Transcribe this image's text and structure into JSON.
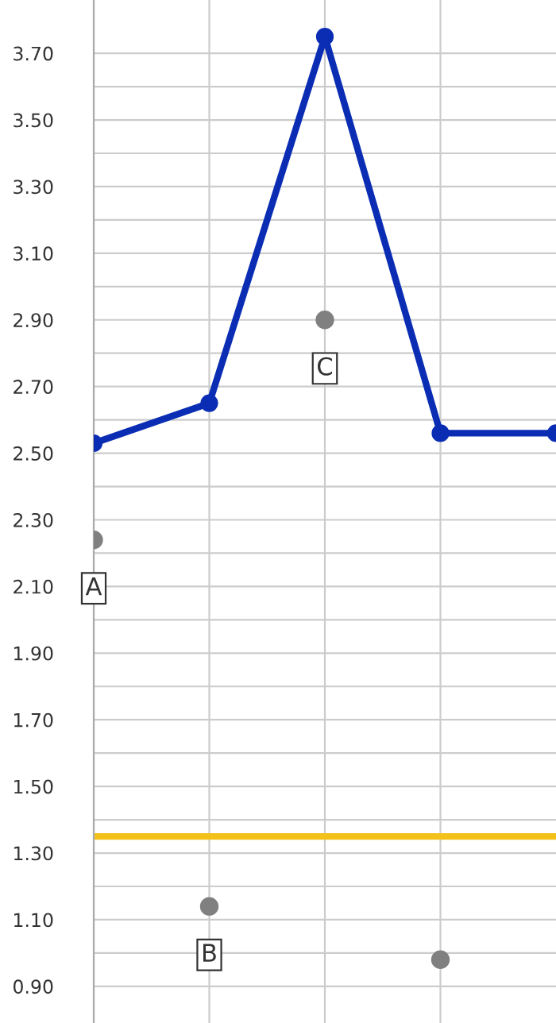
{
  "chart_data": {
    "type": "line",
    "categories": [
      null,
      null,
      null,
      null,
      null
    ],
    "marker": "circle",
    "series": [
      {
        "color": "#0a2db4",
        "values": [
          2.53,
          2.65,
          3.75,
          2.56,
          2.56
        ]
      },
      {
        "type": "scatter",
        "color": "#808080",
        "values": [
          2.24,
          1.14,
          2.9,
          0.98,
          null
        ]
      }
    ],
    "ylim": [
      0.79,
      3.86
    ],
    "yticks": [
      {
        "value": 0.9,
        "label": "0.90"
      },
      {
        "value": 1.0,
        "label": null
      },
      {
        "value": 1.1,
        "label": "1.10"
      },
      {
        "value": 1.2,
        "label": null
      },
      {
        "value": 1.3,
        "label": "1.30"
      },
      {
        "value": 1.4,
        "label": null
      },
      {
        "value": 1.5,
        "label": "1.50"
      },
      {
        "value": 1.6,
        "label": null
      },
      {
        "value": 1.7,
        "label": "1.70"
      },
      {
        "value": 1.8,
        "label": null
      },
      {
        "value": 1.9,
        "label": "1.90"
      },
      {
        "value": 2.0,
        "label": null
      },
      {
        "value": 2.1,
        "label": "2.10"
      },
      {
        "value": 2.2,
        "label": null
      },
      {
        "value": 2.3,
        "label": "2.30"
      },
      {
        "value": 2.4,
        "label": null
      },
      {
        "value": 2.5,
        "label": "2.50"
      },
      {
        "value": 2.6,
        "label": null
      },
      {
        "value": 2.7,
        "label": "2.70"
      },
      {
        "value": 2.8,
        "label": null
      },
      {
        "value": 2.9,
        "label": "2.90"
      },
      {
        "value": 3.0,
        "label": null
      },
      {
        "value": 3.1,
        "label": "3.10"
      },
      {
        "value": 3.2,
        "label": null
      },
      {
        "value": 3.3,
        "label": "3.30"
      },
      {
        "value": 3.4,
        "label": null
      },
      {
        "value": 3.5,
        "label": "3.50"
      },
      {
        "value": 3.6,
        "label": null
      },
      {
        "value": 3.7,
        "label": "3.70"
      }
    ],
    "grid": true,
    "ref_lines": [
      {
        "axis": "y",
        "value": 1.35,
        "color": "#f2c21b"
      }
    ],
    "annotations": [
      "A",
      "B",
      "C"
    ]
  }
}
